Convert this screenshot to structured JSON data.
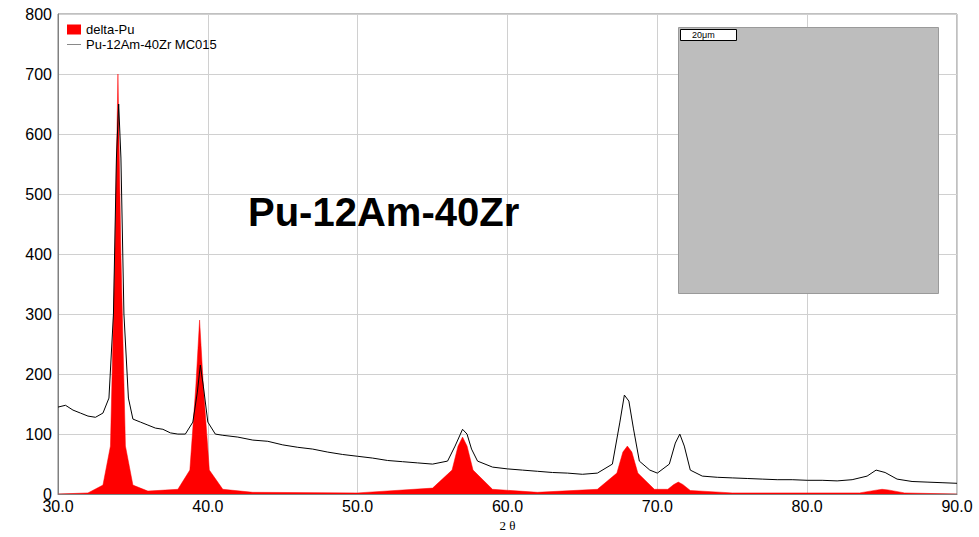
{
  "chart_data": {
    "type": "line",
    "x_label": "2 θ",
    "annotations": [
      "Pu-12Am-40Zr",
      "20μm"
    ],
    "xlim": [
      30,
      90
    ],
    "xticks": [
      {
        "value": 30,
        "label": "30.0"
      },
      {
        "value": 40,
        "label": "40.0"
      },
      {
        "value": 50,
        "label": "50.0"
      },
      {
        "value": 60,
        "label": "60.0"
      },
      {
        "value": 70,
        "label": "70.0"
      },
      {
        "value": 80,
        "label": "80.0"
      },
      {
        "value": 90,
        "label": "90.0"
      }
    ],
    "ylim": [
      0,
      800
    ],
    "yticks": [
      0,
      100,
      200,
      300,
      400,
      500,
      600,
      700,
      800
    ],
    "grid": true,
    "legend": "top-left",
    "series": [
      {
        "name": "delta-Pu",
        "type": "area",
        "color": "#ff0000",
        "x": [
          30,
          32,
          33,
          33.5,
          33.8,
          34.0,
          34.2,
          34.5,
          35,
          36,
          38,
          38.8,
          39.2,
          39.45,
          39.7,
          40.1,
          41,
          43,
          50,
          55,
          56.3,
          56.7,
          57.0,
          57.3,
          57.7,
          59,
          62,
          66,
          67.3,
          67.7,
          68.0,
          68.3,
          68.7,
          69.8,
          70.7,
          71.1,
          71.4,
          71.7,
          72.2,
          75,
          83.5,
          84.7,
          85.0,
          85.4,
          86.5,
          90
        ],
        "values": [
          0,
          2,
          15,
          80,
          400,
          700,
          400,
          80,
          15,
          5,
          8,
          40,
          180,
          290,
          180,
          40,
          8,
          3,
          2,
          10,
          40,
          80,
          95,
          80,
          40,
          8,
          3,
          8,
          35,
          70,
          80,
          70,
          35,
          8,
          8,
          16,
          20,
          16,
          6,
          2,
          2,
          7,
          8,
          7,
          2,
          0
        ]
      },
      {
        "name": "Pu-12Am-40Zr MC015",
        "type": "line",
        "color": "#000000",
        "x": [
          30,
          30.5,
          31,
          31.5,
          32,
          32.5,
          33,
          33.4,
          33.7,
          33.9,
          34.05,
          34.2,
          34.4,
          34.7,
          35,
          35.5,
          36,
          36.5,
          37,
          37.5,
          38,
          38.5,
          39,
          39.3,
          39.5,
          39.7,
          40,
          40.5,
          41,
          42,
          43,
          44,
          45,
          46,
          47,
          48,
          49,
          50,
          51,
          52,
          53,
          54,
          55,
          56,
          56.5,
          57,
          57.3,
          57.6,
          58,
          59,
          60,
          61,
          62,
          63,
          64,
          65,
          66,
          67,
          67.5,
          67.8,
          68.1,
          68.4,
          68.8,
          69.5,
          70,
          70.8,
          71.2,
          71.5,
          71.8,
          72.2,
          73,
          74,
          75,
          76,
          77,
          78,
          79,
          80,
          81,
          82,
          83,
          84,
          84.6,
          85.2,
          86,
          87,
          88,
          89,
          90
        ],
        "values": [
          145,
          148,
          140,
          135,
          130,
          128,
          135,
          160,
          300,
          560,
          650,
          560,
          300,
          160,
          125,
          120,
          115,
          110,
          108,
          102,
          100,
          100,
          120,
          170,
          215,
          180,
          120,
          100,
          98,
          95,
          90,
          88,
          82,
          78,
          75,
          70,
          66,
          63,
          60,
          56,
          54,
          52,
          50,
          55,
          80,
          108,
          100,
          75,
          55,
          45,
          42,
          40,
          38,
          36,
          35,
          33,
          35,
          50,
          120,
          165,
          155,
          110,
          55,
          40,
          35,
          50,
          85,
          100,
          80,
          40,
          30,
          28,
          27,
          26,
          25,
          24,
          24,
          23,
          23,
          22,
          24,
          30,
          40,
          36,
          25,
          21,
          20,
          19,
          18
        ]
      }
    ]
  }
}
